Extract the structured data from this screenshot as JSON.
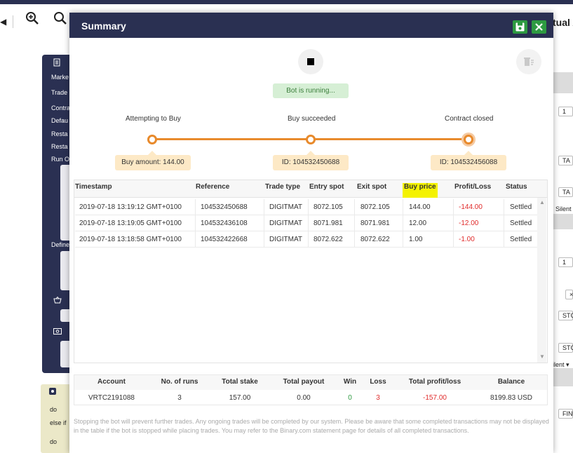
{
  "toolbar": {
    "virtual_label": "tual A"
  },
  "background": {
    "side_labels": [
      "Marke",
      "Trade",
      "Contra",
      "Defau",
      "Resta",
      "Resta",
      "Run O",
      "Define"
    ],
    "settings_labels": [
      "do",
      "else if",
      "do"
    ],
    "right_values": [
      "1",
      "TA",
      "TA",
      "Silent",
      "1",
      "×",
      "STC",
      "STC",
      "ilent ▾",
      "FIN"
    ]
  },
  "modal": {
    "title": "Summary",
    "status": "Bot is running...",
    "icons": {
      "save": "save-icon",
      "close": "close-icon",
      "stop": "stop-icon",
      "clear": "clear-icon"
    },
    "accent_color": "#e88a2c"
  },
  "progress": {
    "stages": [
      {
        "label": "Attempting to Buy",
        "chip": "Buy amount: 144.00"
      },
      {
        "label": "Buy succeeded",
        "chip": "ID: 104532450688"
      },
      {
        "label": "Contract closed",
        "chip": "ID: 104532456088"
      }
    ]
  },
  "trades": {
    "headers": [
      "Timestamp",
      "Reference",
      "Trade type",
      "Entry spot",
      "Exit spot",
      "Buy price",
      "Profit/Loss",
      "Status"
    ],
    "rows": [
      {
        "timestamp": "2019-07-18 13:19:12 GMT+0100",
        "reference": "104532450688",
        "trade_type": "DIGITMAT",
        "entry_spot": "8072.105",
        "exit_spot": "8072.105",
        "buy_price": "144.00",
        "profit_loss": "-144.00",
        "status": "Settled"
      },
      {
        "timestamp": "2019-07-18 13:19:05 GMT+0100",
        "reference": "104532436108",
        "trade_type": "DIGITMAT",
        "entry_spot": "8071.981",
        "exit_spot": "8071.981",
        "buy_price": "12.00",
        "profit_loss": "-12.00",
        "status": "Settled"
      },
      {
        "timestamp": "2019-07-18 13:18:58 GMT+0100",
        "reference": "104532422668",
        "trade_type": "DIGITMAT",
        "entry_spot": "8072.622",
        "exit_spot": "8072.622",
        "buy_price": "1.00",
        "profit_loss": "-1.00",
        "status": "Settled"
      }
    ]
  },
  "summary": {
    "headers": [
      "Account",
      "No. of runs",
      "Total stake",
      "Total payout",
      "Win",
      "Loss",
      "Total profit/loss",
      "Balance"
    ],
    "values": {
      "account": "VRTC2191088",
      "runs": "3",
      "total_stake": "157.00",
      "total_payout": "0.00",
      "win": "0",
      "loss": "3",
      "total_profit_loss": "-157.00",
      "balance": "8199.83 USD"
    }
  },
  "footnote": "Stopping the bot will prevent further trades. Any ongoing trades will be completed by our system. Please be aware that some completed transactions may not be displayed in the table if the bot is stopped while placing trades. You may refer to the Binary.com statement page for details of all completed transactions."
}
